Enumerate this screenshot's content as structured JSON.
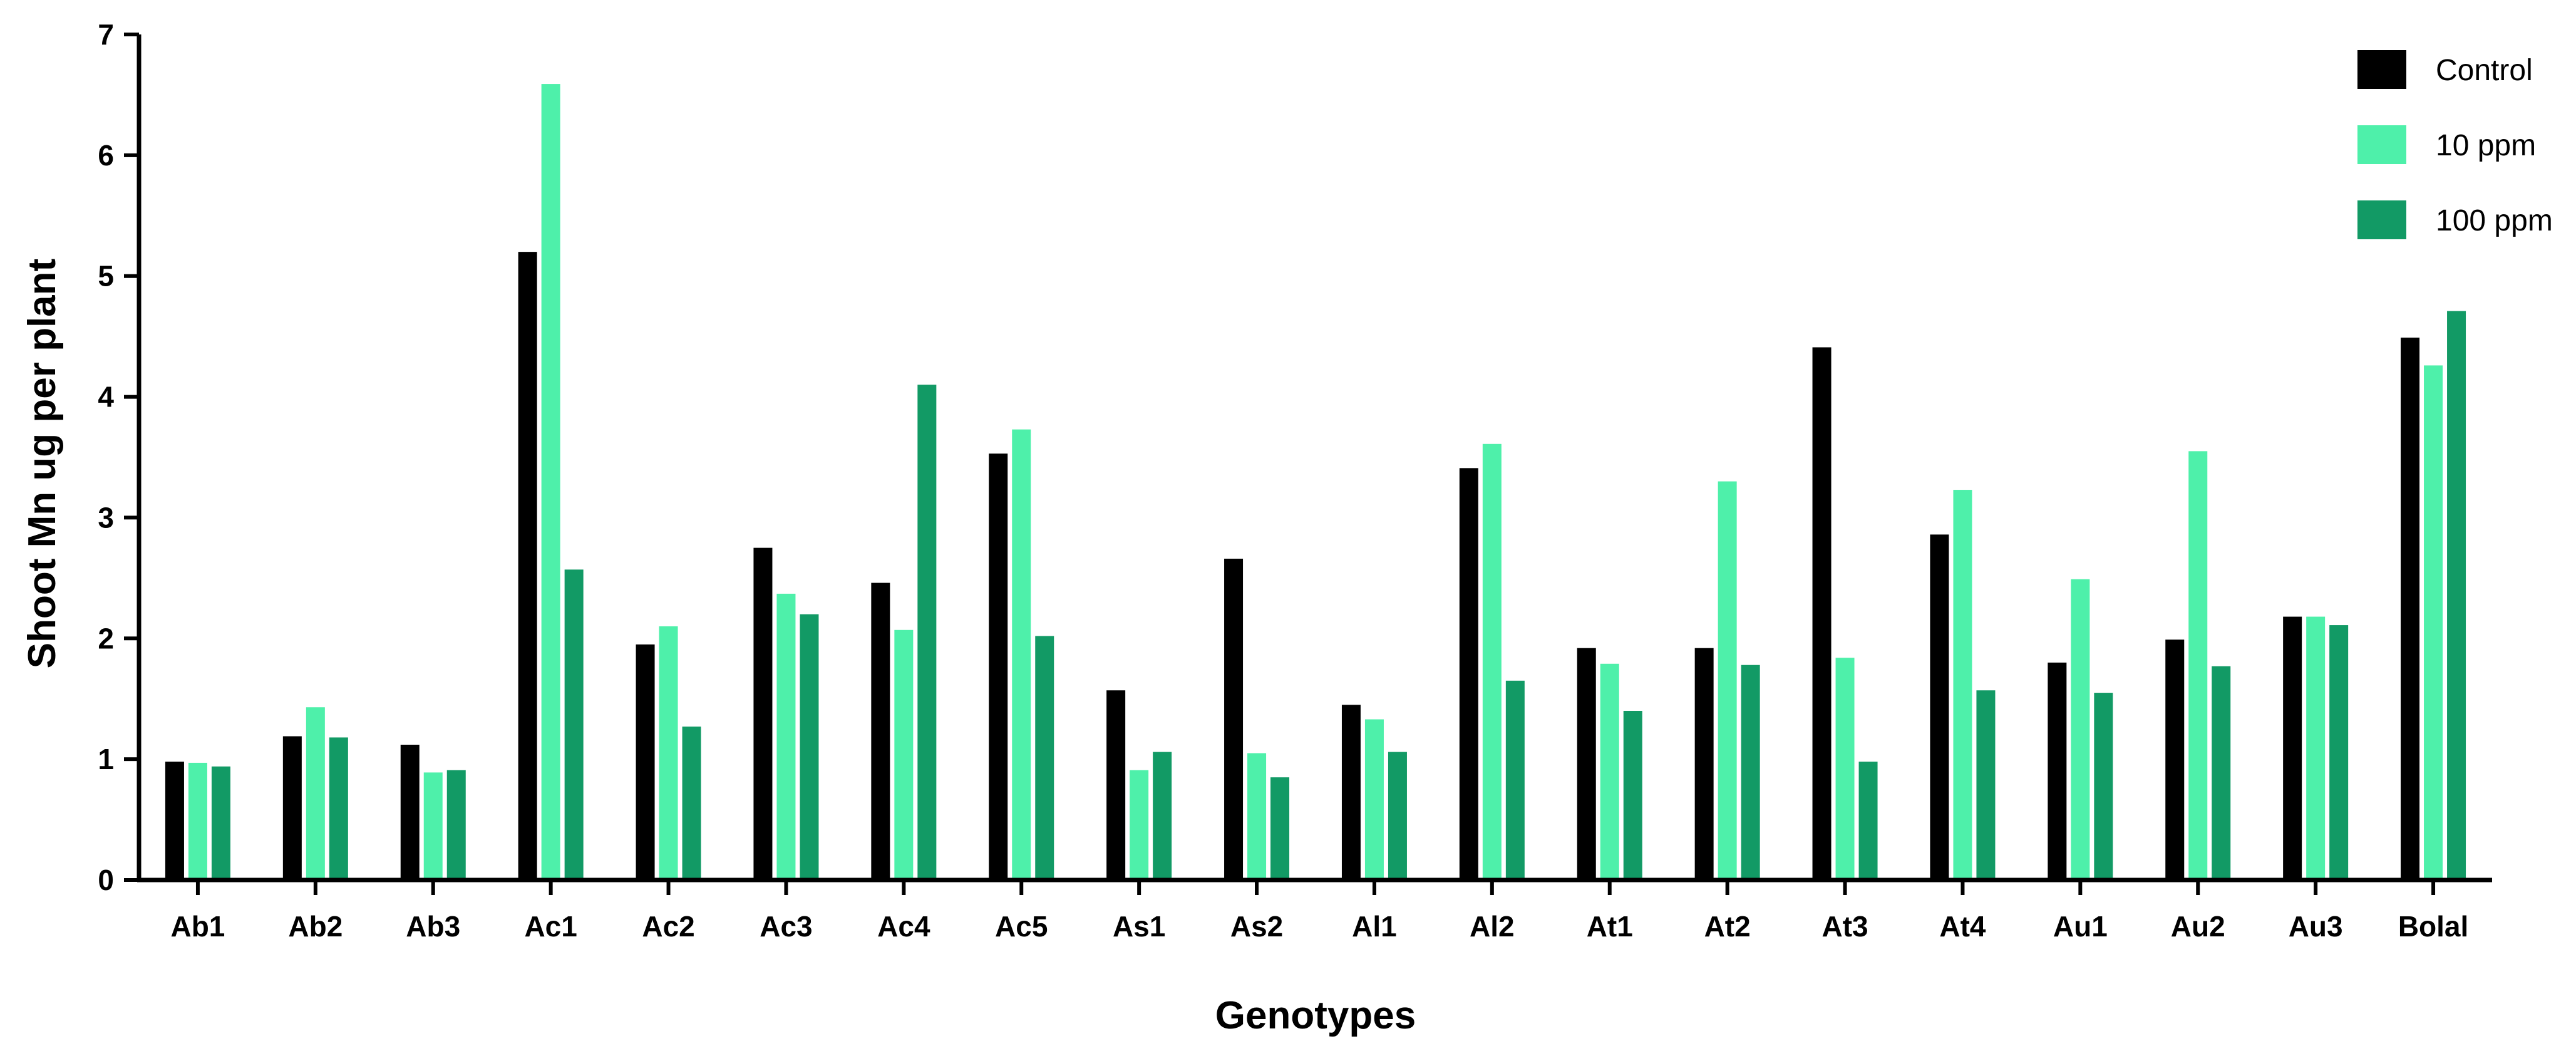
{
  "chart_data": {
    "type": "bar",
    "title": "",
    "xlabel": "Genotypes",
    "ylabel": "Shoot Mn ug per plant",
    "ylim": [
      0,
      7
    ],
    "yticks": [
      "0",
      "1",
      "2",
      "3",
      "4",
      "5",
      "6",
      "7"
    ],
    "legend_position": "top-right",
    "categories": [
      "Ab1",
      "Ab2",
      "Ab3",
      "Ac1",
      "Ac2",
      "Ac3",
      "Ac4",
      "Ac5",
      "As1",
      "As2",
      "Al1",
      "Al2",
      "At1",
      "At2",
      "At3",
      "At4",
      "Au1",
      "Au2",
      "Au3",
      "Bolal"
    ],
    "series": [
      {
        "name": "Control",
        "color": "#000000",
        "values": [
          0.98,
          1.19,
          1.12,
          5.2,
          1.95,
          2.75,
          2.46,
          3.53,
          1.57,
          2.66,
          1.45,
          3.41,
          1.92,
          1.92,
          4.41,
          2.86,
          1.8,
          1.99,
          2.18,
          4.49
        ]
      },
      {
        "name": "10 ppm",
        "color": "#4ef0aa",
        "values": [
          0.97,
          1.43,
          0.89,
          6.59,
          2.1,
          2.37,
          2.07,
          3.73,
          0.91,
          1.05,
          1.33,
          3.61,
          1.79,
          3.3,
          1.84,
          3.23,
          2.49,
          3.55,
          2.18,
          4.26
        ]
      },
      {
        "name": "100 ppm",
        "color": "#129a65",
        "values": [
          0.94,
          1.18,
          0.91,
          2.57,
          1.27,
          2.2,
          4.1,
          2.02,
          1.06,
          0.85,
          1.06,
          1.65,
          1.4,
          1.78,
          0.98,
          1.57,
          1.55,
          1.77,
          2.11,
          4.71
        ]
      }
    ]
  }
}
